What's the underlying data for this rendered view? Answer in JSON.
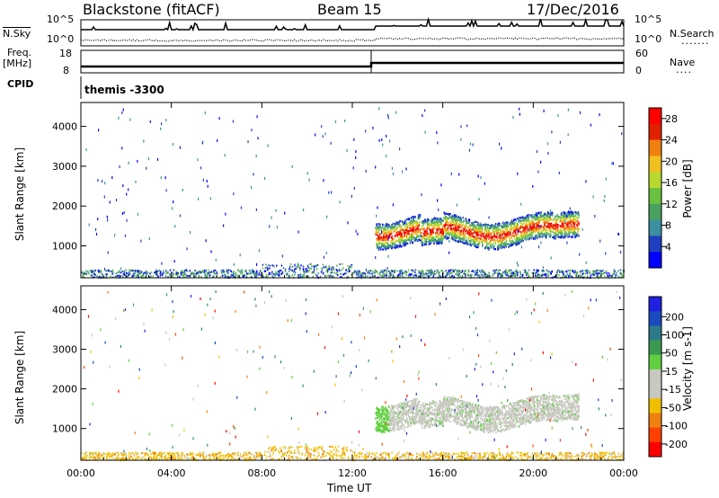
{
  "header": {
    "station": "Blackstone (fitACF)",
    "beam": "Beam 15",
    "date": "17/Dec/2016"
  },
  "left_labels": {
    "nsky": "N.Sky",
    "freq": "Freq.",
    "mhz": "[MHz]",
    "cpid": "CPID"
  },
  "right_labels": {
    "nsearch": "N.Search",
    "nave": "Nave"
  },
  "sky_ticks": {
    "top": "10^5",
    "bottom": "10^0"
  },
  "freq_ticks": {
    "top": "18",
    "bottom": "8"
  },
  "nave_ticks": {
    "top": "60",
    "bottom": "0"
  },
  "cpid_text": "themis -3300",
  "colors": {
    "power": [
      "#0000ff",
      "#1f3fbf",
      "#3c8f9f",
      "#4aa060",
      "#6ac040",
      "#b8d830",
      "#f0c020",
      "#f08010",
      "#e02000",
      "#ff0000"
    ],
    "velocity": [
      "#ff0000",
      "#ff4000",
      "#f08010",
      "#f0c000",
      "#c8c8c0",
      "#c8c8c0",
      "#60d040",
      "#3a9a50",
      "#2e7a8a",
      "#1a4abf",
      "#2020e0"
    ]
  },
  "chart_data": [
    {
      "type": "heatmap",
      "name": "power-panel",
      "xlabel": "Time UT",
      "ylabel": "Slant Range [km]",
      "x_ticks": [
        "00:00",
        "04:00",
        "08:00",
        "12:00",
        "16:00",
        "20:00",
        "00:00"
      ],
      "xlim": [
        0,
        24
      ],
      "ylim": [
        200,
        4600
      ],
      "y_ticks": [
        1000,
        2000,
        3000,
        4000
      ],
      "colorbar": {
        "label": "Power [dB]",
        "ticks": [
          4,
          8,
          12,
          16,
          20,
          24,
          28
        ],
        "range": [
          0,
          30
        ]
      }
    },
    {
      "type": "heatmap",
      "name": "velocity-panel",
      "xlabel": "Time UT",
      "ylabel": "Slant Range [km]",
      "x_ticks": [
        "00:00",
        "04:00",
        "08:00",
        "12:00",
        "16:00",
        "20:00",
        "00:00"
      ],
      "xlim": [
        0,
        24
      ],
      "ylim": [
        200,
        4600
      ],
      "y_ticks": [
        1000,
        2000,
        3000,
        4000
      ],
      "colorbar": {
        "label": "Velocity [m s-1]",
        "ticks": [
          200,
          100,
          50,
          15,
          -15,
          -50,
          -100,
          -200
        ]
      }
    }
  ]
}
